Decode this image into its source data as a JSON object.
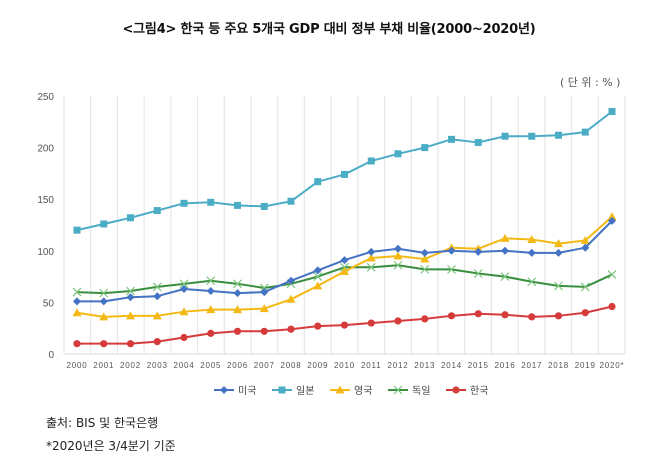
{
  "header": {
    "title": "<그림4> 한국 등 주요 5개국 GDP 대비 정부 부채 비율(2000~2020년)",
    "unit": "( 단 위 :  % )"
  },
  "footer": {
    "source": "출처: BIS 및 한국은행",
    "note": "*2020년은 3/4분기 기준"
  },
  "chart_data": {
    "type": "line",
    "title": "<그림4> 한국 등 주요 5개국 GDP 대비 정부 부채 비율(2000~2020년)",
    "xlabel": "",
    "ylabel": "",
    "unit": "%",
    "ylim": [
      0,
      250
    ],
    "yticks": [
      0,
      50,
      100,
      150,
      200,
      250
    ],
    "grid": "vertical",
    "legend_position": "bottom",
    "categories": [
      "2000",
      "2001",
      "2002",
      "2003",
      "2004",
      "2005",
      "2006",
      "2007",
      "2008",
      "2009",
      "2010",
      "2011",
      "2012",
      "2013",
      "2014",
      "2015",
      "2016",
      "2017",
      "2018",
      "2019",
      "2020*"
    ],
    "series": [
      {
        "name": "미국",
        "color": "#4472c4",
        "marker": "diamond",
        "values": [
          51,
          51,
          55,
          56,
          63,
          61,
          59,
          60,
          71,
          81,
          91,
          99,
          102,
          98,
          100,
          99,
          100,
          98,
          98,
          103,
          129
        ]
      },
      {
        "name": "일본",
        "color": "#4bacc6",
        "marker": "square",
        "values": [
          120,
          126,
          132,
          139,
          146,
          147,
          144,
          143,
          148,
          167,
          174,
          187,
          194,
          200,
          208,
          205,
          211,
          211,
          212,
          215,
          235
        ]
      },
      {
        "name": "영국",
        "color": "#f4b915",
        "marker": "triangle",
        "values": [
          40,
          36,
          37,
          37,
          41,
          43,
          43,
          44,
          53,
          66,
          80,
          93,
          95,
          92,
          103,
          102,
          112,
          111,
          107,
          110,
          133
        ]
      },
      {
        "name": "독일",
        "color": "#3a8f3e",
        "marker": "x",
        "values": [
          60,
          59,
          61,
          65,
          68,
          71,
          68,
          64,
          68,
          75,
          84,
          84,
          86,
          82,
          82,
          78,
          75,
          70,
          66,
          65,
          77
        ]
      },
      {
        "name": "한국",
        "color": "#d63b3b",
        "marker": "circle",
        "values": [
          10,
          10,
          10,
          12,
          16,
          20,
          22,
          22,
          24,
          27,
          28,
          30,
          32,
          34,
          37,
          39,
          38,
          36,
          37,
          40,
          46
        ]
      }
    ]
  }
}
